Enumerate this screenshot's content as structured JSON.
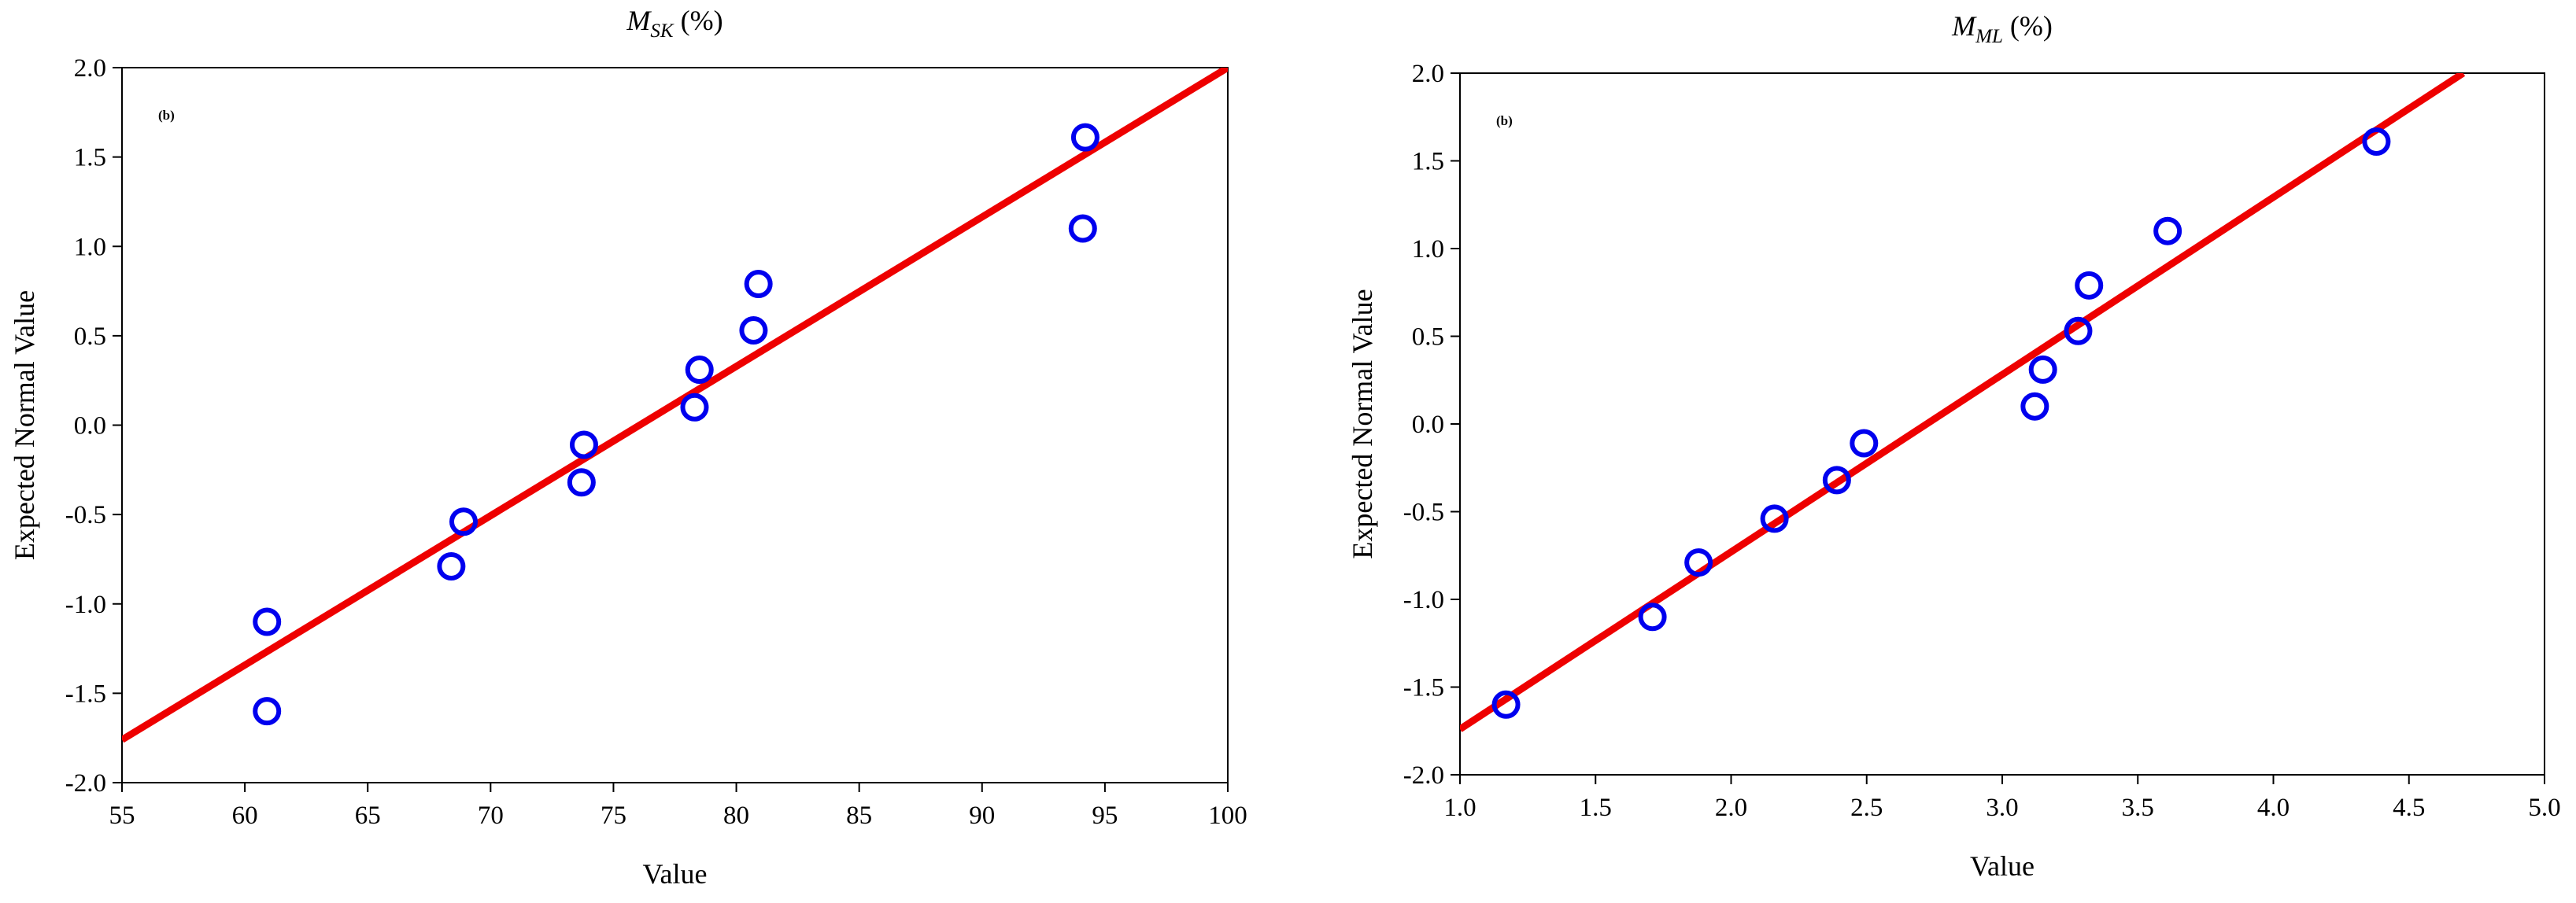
{
  "colors": {
    "marker": "#0000ee",
    "fit_line": "#ee0000",
    "axis": "#000000",
    "background": "#ffffff"
  },
  "chart_data": [
    {
      "type": "scatter",
      "title_base": "M",
      "title_sub": "SK",
      "title_unit": " (%)",
      "panel_label": "(b)",
      "xlabel": "Value",
      "ylabel": "Expected Normal Value",
      "xlim": [
        55,
        100
      ],
      "ylim": [
        -2.0,
        2.0
      ],
      "xticks": [
        55,
        60,
        65,
        70,
        75,
        80,
        85,
        90,
        95,
        100
      ],
      "xtick_labels": [
        "55",
        "60",
        "65",
        "70",
        "75",
        "80",
        "85",
        "90",
        "95",
        "100"
      ],
      "yticks": [
        -2.0,
        -1.5,
        -1.0,
        -0.5,
        0.0,
        0.5,
        1.0,
        1.5,
        2.0
      ],
      "ytick_labels": [
        "-2.0",
        "-1.5",
        "-1.0",
        "-0.5",
        "0.0",
        "0.5",
        "1.0",
        "1.5",
        "2.0"
      ],
      "grid": false,
      "points": [
        {
          "x": 60.9,
          "y": -1.6
        },
        {
          "x": 60.9,
          "y": -1.1
        },
        {
          "x": 68.4,
          "y": -0.79
        },
        {
          "x": 68.9,
          "y": -0.54
        },
        {
          "x": 73.7,
          "y": -0.32
        },
        {
          "x": 73.8,
          "y": -0.11
        },
        {
          "x": 78.3,
          "y": 0.1
        },
        {
          "x": 78.5,
          "y": 0.31
        },
        {
          "x": 80.7,
          "y": 0.53
        },
        {
          "x": 80.9,
          "y": 0.79
        },
        {
          "x": 94.1,
          "y": 1.1
        },
        {
          "x": 94.2,
          "y": 1.61
        }
      ],
      "fit_line": {
        "x": [
          55,
          100
        ],
        "y": [
          -1.76,
          2.0
        ]
      }
    },
    {
      "type": "scatter",
      "title_base": "M",
      "title_sub": "ML",
      "title_unit": " (%)",
      "panel_label": "(b)",
      "xlabel": "Value",
      "ylabel": "Expected Normal Value",
      "xlim": [
        1.0,
        5.0
      ],
      "ylim": [
        -2.0,
        2.0
      ],
      "xticks": [
        1.0,
        1.5,
        2.0,
        2.5,
        3.0,
        3.5,
        4.0,
        4.5,
        5.0
      ],
      "xtick_labels": [
        "1.0",
        "1.5",
        "2.0",
        "2.5",
        "3.0",
        "3.5",
        "4.0",
        "4.5",
        "5.0"
      ],
      "yticks": [
        -2.0,
        -1.5,
        -1.0,
        -0.5,
        0.0,
        0.5,
        1.0,
        1.5,
        2.0
      ],
      "ytick_labels": [
        "-2.0",
        "-1.5",
        "-1.0",
        "-0.5",
        "0.0",
        "0.5",
        "1.0",
        "1.5",
        "2.0"
      ],
      "grid": false,
      "points": [
        {
          "x": 1.17,
          "y": -1.6
        },
        {
          "x": 1.71,
          "y": -1.1
        },
        {
          "x": 1.88,
          "y": -0.79
        },
        {
          "x": 2.16,
          "y": -0.54
        },
        {
          "x": 2.39,
          "y": -0.32
        },
        {
          "x": 2.49,
          "y": -0.11
        },
        {
          "x": 3.12,
          "y": 0.1
        },
        {
          "x": 3.15,
          "y": 0.31
        },
        {
          "x": 3.28,
          "y": 0.53
        },
        {
          "x": 3.32,
          "y": 0.79
        },
        {
          "x": 3.61,
          "y": 1.1
        },
        {
          "x": 4.38,
          "y": 1.61
        }
      ],
      "fit_line": {
        "x": [
          1.0,
          4.7
        ],
        "y": [
          -1.74,
          2.0
        ]
      }
    }
  ]
}
